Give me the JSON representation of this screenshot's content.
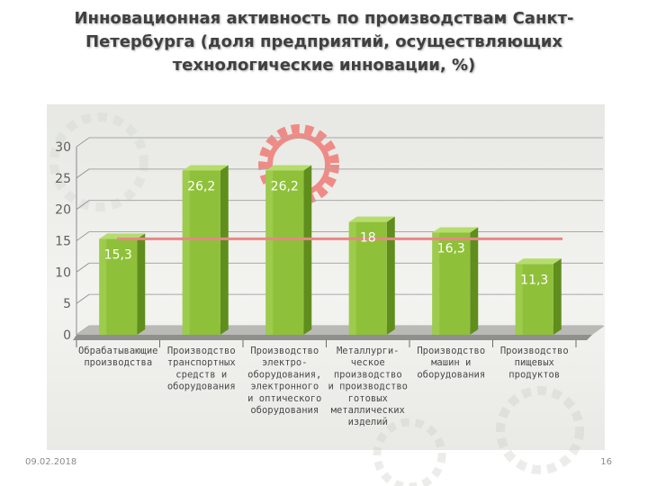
{
  "slide": {
    "title": "Инновационная активность по производствам Санкт-Петербурга (доля предприятий, осуществляющих технологические инновации, %)",
    "date": "09.02.2018",
    "page_number": "16"
  },
  "colors": {
    "bar_front": "#8fc03a",
    "bar_side": "#5f8e1c",
    "bar_top": "#b6dc6e",
    "reference_line": "#e98787",
    "gear": "#ef8b86"
  },
  "chart_data": {
    "type": "bar",
    "title": "",
    "xlabel": "",
    "ylabel": "",
    "ylim": [
      0,
      30
    ],
    "yticks": [
      0,
      5,
      10,
      15,
      20,
      25,
      30
    ],
    "grid": true,
    "categories": [
      [
        "Обрабатывающие",
        "производства"
      ],
      [
        "Производство",
        "транспортных",
        "средств и",
        "оборудования"
      ],
      [
        "Производство",
        "электро-",
        "оборудования,",
        "электронного",
        "и оптического",
        "оборудования"
      ],
      [
        "Металлурги-",
        "ческое",
        "производство",
        "и производство",
        "готовых",
        "металлических",
        "изделий"
      ],
      [
        "Производство",
        "машин и",
        "оборудования"
      ],
      [
        "Производство",
        "пищевых",
        "продуктов"
      ]
    ],
    "values": [
      15.3,
      26.2,
      26.2,
      18,
      16.3,
      11.3
    ],
    "value_labels": [
      "15,3",
      "26,2",
      "26,2",
      "18",
      "16,3",
      "11,3"
    ],
    "reference_line": 15.3
  }
}
